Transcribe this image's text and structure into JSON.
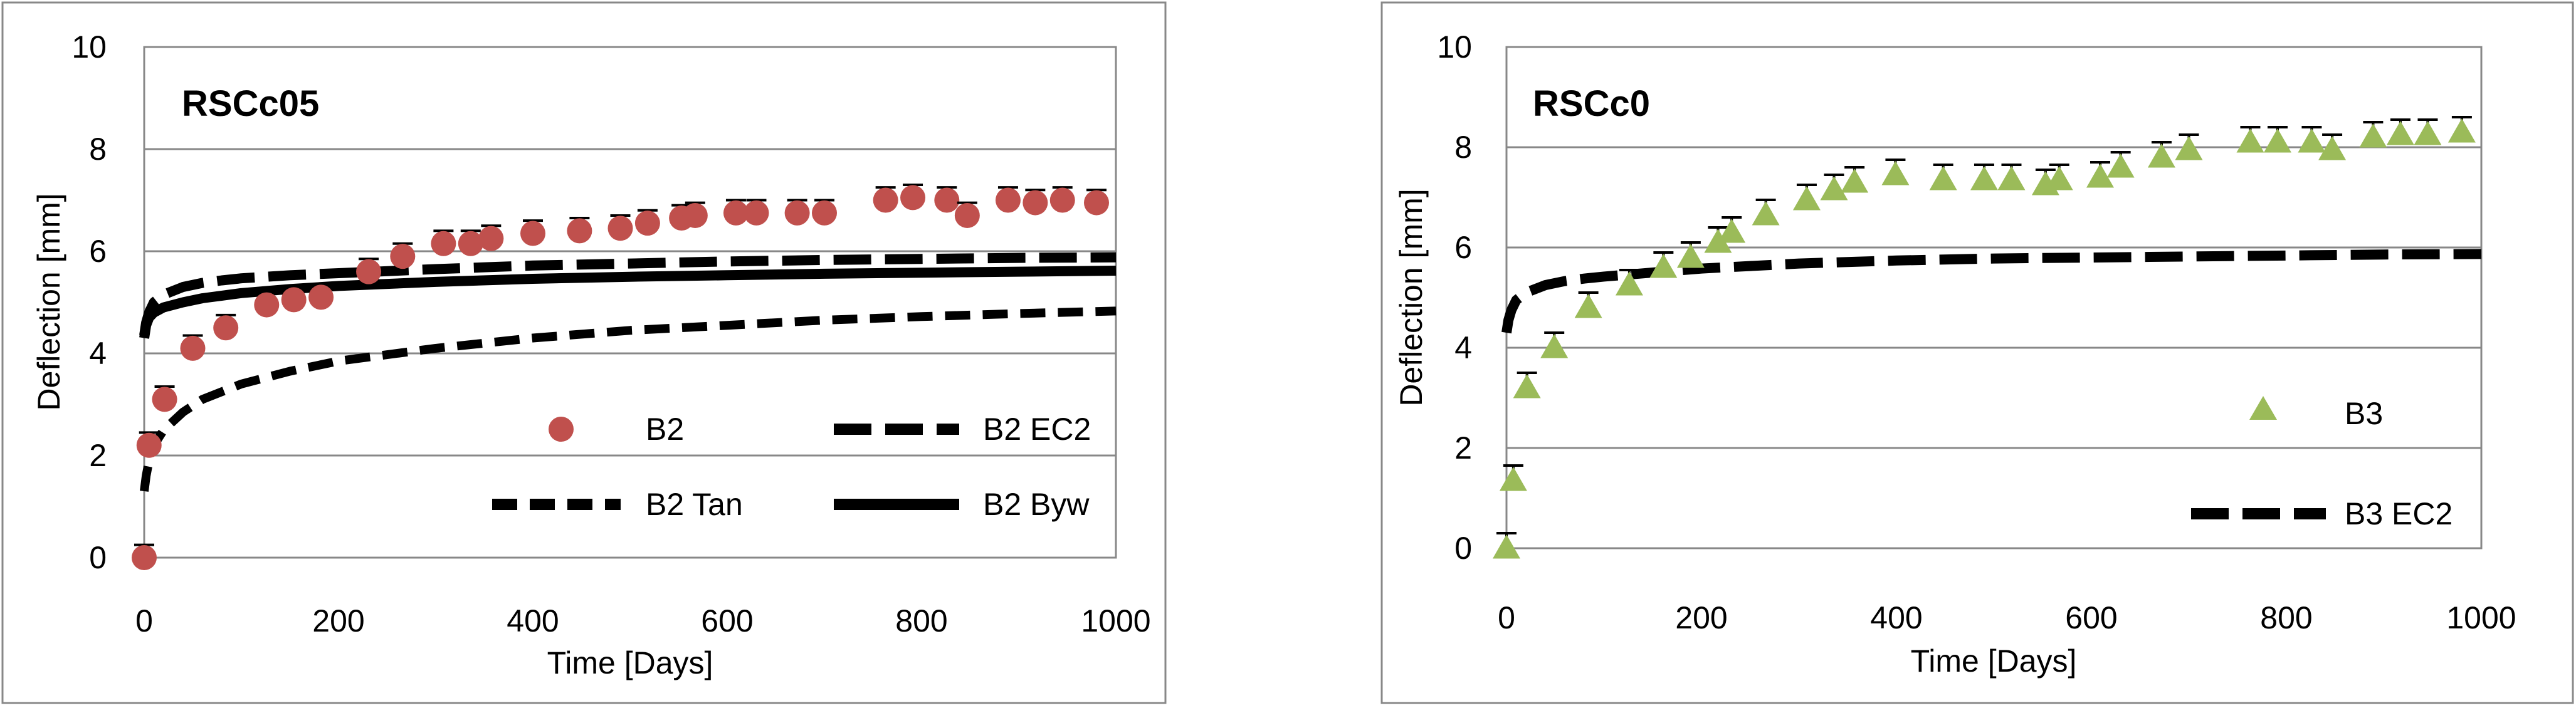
{
  "chart_data": [
    {
      "type": "scatter",
      "title": "RSCc05",
      "xlabel": "Time [Days]",
      "ylabel": "Deflection [mm]",
      "xlim": [
        0,
        1000
      ],
      "ylim": [
        0,
        10
      ],
      "xticks": [
        0,
        200,
        400,
        600,
        800,
        1000
      ],
      "yticks": [
        0,
        2,
        4,
        6,
        8,
        10
      ],
      "legend_position": "bottom-right",
      "series": [
        {
          "name": "B2",
          "kind": "markers",
          "marker": "circle",
          "color": "#c0504d",
          "error_bar": 0.25,
          "x": [
            0,
            5,
            21,
            50,
            84,
            126,
            154,
            182,
            231,
            266,
            308,
            336,
            357,
            400,
            448,
            490,
            518,
            553,
            567,
            609,
            630,
            672,
            700,
            763,
            791,
            826,
            847,
            889,
            917,
            945,
            980
          ],
          "y": [
            0,
            2.2,
            3.1,
            4.1,
            4.5,
            4.95,
            5.05,
            5.1,
            5.6,
            5.9,
            6.15,
            6.15,
            6.25,
            6.35,
            6.4,
            6.45,
            6.55,
            6.65,
            6.7,
            6.75,
            6.75,
            6.75,
            6.75,
            7.0,
            7.05,
            7.0,
            6.7,
            7.0,
            6.95,
            7.0,
            6.95
          ]
        },
        {
          "name": "B2 EC2",
          "kind": "line",
          "dash": "long-dash",
          "color": "#000000",
          "x": [
            0,
            2,
            5,
            10,
            20,
            40,
            60,
            80,
            100,
            150,
            200,
            300,
            400,
            500,
            600,
            700,
            800,
            900,
            1000
          ],
          "y": [
            4.35,
            4.6,
            4.8,
            5.0,
            5.15,
            5.3,
            5.38,
            5.43,
            5.47,
            5.53,
            5.57,
            5.65,
            5.72,
            5.76,
            5.8,
            5.83,
            5.85,
            5.87,
            5.88
          ]
        },
        {
          "name": "B2 Tan",
          "kind": "line",
          "dash": "short-dash",
          "color": "#000000",
          "x": [
            0,
            2,
            5,
            10,
            20,
            40,
            60,
            80,
            100,
            150,
            200,
            300,
            400,
            500,
            600,
            700,
            800,
            900,
            1000
          ],
          "y": [
            1.3,
            1.6,
            1.9,
            2.2,
            2.5,
            2.85,
            3.1,
            3.25,
            3.4,
            3.65,
            3.85,
            4.1,
            4.3,
            4.45,
            4.55,
            4.65,
            4.72,
            4.78,
            4.83
          ]
        },
        {
          "name": "B2 Byw",
          "kind": "line",
          "dash": "solid",
          "color": "#000000",
          "x": [
            0,
            2,
            5,
            10,
            20,
            40,
            60,
            80,
            100,
            150,
            200,
            300,
            400,
            500,
            600,
            700,
            800,
            900,
            1000
          ],
          "y": [
            4.3,
            4.55,
            4.7,
            4.8,
            4.9,
            5.0,
            5.08,
            5.13,
            5.18,
            5.26,
            5.32,
            5.4,
            5.46,
            5.5,
            5.53,
            5.56,
            5.58,
            5.6,
            5.62
          ]
        }
      ]
    },
    {
      "type": "scatter",
      "title": "RSCc0",
      "xlabel": "Time [Days]",
      "ylabel": "Deflection [mm]",
      "xlim": [
        0,
        1000
      ],
      "ylim": [
        0,
        10
      ],
      "xticks": [
        0,
        200,
        400,
        600,
        800,
        1000
      ],
      "yticks": [
        0,
        2,
        4,
        6,
        8,
        10
      ],
      "legend_position": "right",
      "series": [
        {
          "name": "B3",
          "kind": "markers",
          "marker": "triangle",
          "color": "#9bbb59",
          "error_bar": 0.3,
          "x": [
            0,
            7,
            21,
            49,
            84,
            126,
            161,
            189,
            217,
            231,
            266,
            308,
            336,
            357,
            399,
            448,
            490,
            518,
            553,
            567,
            609,
            630,
            672,
            700,
            763,
            791,
            826,
            847,
            889,
            917,
            945,
            980
          ],
          "y": [
            0,
            1.35,
            3.2,
            4.0,
            4.8,
            5.25,
            5.6,
            5.8,
            6.1,
            6.3,
            6.65,
            6.95,
            7.15,
            7.3,
            7.45,
            7.35,
            7.35,
            7.35,
            7.25,
            7.35,
            7.4,
            7.6,
            7.8,
            7.95,
            8.1,
            8.1,
            8.1,
            7.95,
            8.2,
            8.25,
            8.25,
            8.3
          ]
        },
        {
          "name": "B3 EC2",
          "kind": "line",
          "dash": "long-dash",
          "color": "#000000",
          "x": [
            0,
            2,
            5,
            10,
            20,
            40,
            60,
            80,
            100,
            150,
            200,
            300,
            400,
            500,
            600,
            700,
            800,
            900,
            1000
          ],
          "y": [
            4.3,
            4.55,
            4.75,
            4.95,
            5.1,
            5.25,
            5.33,
            5.38,
            5.42,
            5.5,
            5.58,
            5.68,
            5.74,
            5.78,
            5.8,
            5.82,
            5.84,
            5.86,
            5.87
          ]
        }
      ]
    }
  ]
}
